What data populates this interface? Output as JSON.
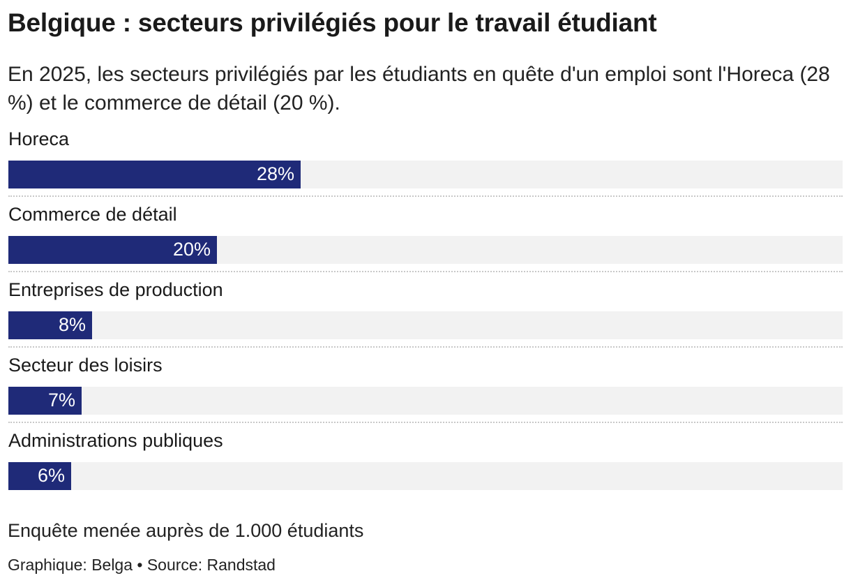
{
  "header": {
    "title": "Belgique : secteurs privilégiés pour le travail étudiant",
    "subtitle": "En 2025, les secteurs privilégiés par les étudiants en quête d'un emploi sont l'Horeca (28 %) et le commerce de détail (20 %)."
  },
  "chart_data": {
    "type": "bar",
    "orientation": "horizontal",
    "categories": [
      "Horeca",
      "Commerce de détail",
      "Entreprises de production",
      "Secteur des loisirs",
      "Administrations publiques"
    ],
    "values": [
      28,
      20,
      8,
      7,
      6
    ],
    "value_labels": [
      "28%",
      "20%",
      "8%",
      "7%",
      "6%"
    ],
    "unit": "%",
    "xlim": [
      0,
      80
    ],
    "bar_color": "#1f2a78",
    "track_color": "#f2f2f2",
    "grid": false,
    "legend": "none"
  },
  "footer": {
    "note": "Enquête menée auprès de 1.000 étudiants",
    "credit": "Graphique: Belga • Source: Randstad"
  }
}
